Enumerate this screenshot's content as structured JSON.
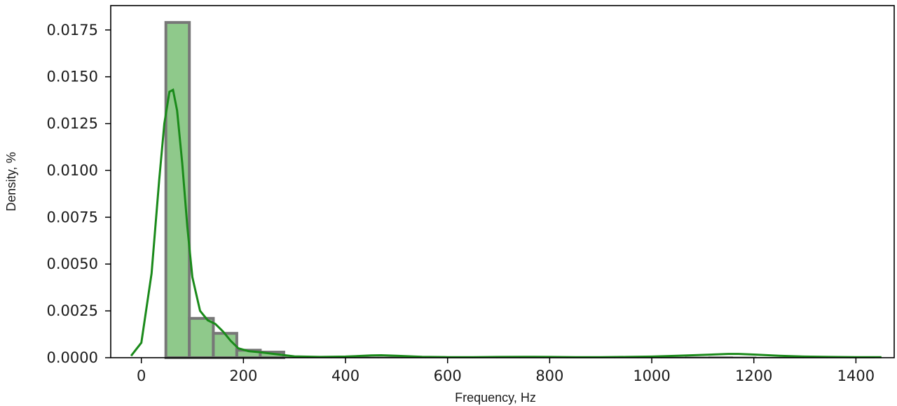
{
  "chart_data": {
    "type": "histogram",
    "title": "",
    "xlabel": "Frequency, Hz",
    "ylabel": "Density, %",
    "xlim": [
      -60,
      1475
    ],
    "ylim": [
      0,
      0.0188
    ],
    "x_ticks": [
      0,
      200,
      400,
      600,
      800,
      1000,
      1200,
      1400
    ],
    "y_ticks": [
      0.0,
      0.0025,
      0.005,
      0.0075,
      0.01,
      0.0125,
      0.015,
      0.0175
    ],
    "y_tick_labels": [
      "0.0000",
      "0.0025",
      "0.0050",
      "0.0075",
      "0.0100",
      "0.0125",
      "0.0150",
      "0.0175"
    ],
    "grid": false,
    "bins": [
      {
        "x0": 48,
        "x1": 94,
        "density": 0.0179
      },
      {
        "x0": 94,
        "x1": 141,
        "density": 0.0021
      },
      {
        "x0": 141,
        "x1": 187,
        "density": 0.0013
      },
      {
        "x0": 187,
        "x1": 233,
        "density": 0.0004
      },
      {
        "x0": 233,
        "x1": 279,
        "density": 0.0003
      },
      {
        "x0": 279,
        "x1": 326,
        "density": 8e-05
      },
      {
        "x0": 326,
        "x1": 372,
        "density": 6e-05
      },
      {
        "x0": 372,
        "x1": 418,
        "density": 4e-05
      },
      {
        "x0": 418,
        "x1": 464,
        "density": 3e-05
      },
      {
        "x0": 464,
        "x1": 511,
        "density": 3e-05
      },
      {
        "x0": 511,
        "x1": 557,
        "density": 2e-05
      },
      {
        "x0": 557,
        "x1": 603,
        "density": 1e-05
      },
      {
        "x0": 603,
        "x1": 649,
        "density": 1e-05
      },
      {
        "x0": 649,
        "x1": 696,
        "density": 1e-05
      },
      {
        "x0": 696,
        "x1": 742,
        "density": 1e-05
      },
      {
        "x0": 742,
        "x1": 788,
        "density": 1e-05
      },
      {
        "x0": 788,
        "x1": 834,
        "density": 1e-05
      },
      {
        "x0": 834,
        "x1": 881,
        "density": 1e-05
      },
      {
        "x0": 881,
        "x1": 927,
        "density": 1e-05
      },
      {
        "x0": 927,
        "x1": 973,
        "density": 1e-05
      },
      {
        "x0": 973,
        "x1": 1019,
        "density": 1e-05
      },
      {
        "x0": 1019,
        "x1": 1066,
        "density": 2e-05
      },
      {
        "x0": 1066,
        "x1": 1112,
        "density": 3e-05
      },
      {
        "x0": 1112,
        "x1": 1158,
        "density": 4e-05
      },
      {
        "x0": 1158,
        "x1": 1204,
        "density": 3e-05
      },
      {
        "x0": 1204,
        "x1": 1251,
        "density": 1e-05
      },
      {
        "x0": 1251,
        "x1": 1297,
        "density": 1e-05
      },
      {
        "x0": 1297,
        "x1": 1343,
        "density": 1e-05
      },
      {
        "x0": 1343,
        "x1": 1389,
        "density": 1e-05
      },
      {
        "x0": 1389,
        "x1": 1436,
        "density": 1e-05
      }
    ],
    "kde": {
      "x": [
        -20,
        0,
        20,
        35,
        45,
        55,
        62,
        70,
        80,
        90,
        100,
        115,
        130,
        145,
        160,
        175,
        190,
        210,
        230,
        260,
        300,
        350,
        400,
        450,
        470,
        500,
        550,
        600,
        650,
        700,
        750,
        800,
        850,
        900,
        950,
        1000,
        1050,
        1100,
        1150,
        1170,
        1200,
        1250,
        1300,
        1350,
        1400,
        1450
      ],
      "y": [
        0.0001,
        0.0008,
        0.0045,
        0.0095,
        0.0125,
        0.0142,
        0.0143,
        0.0132,
        0.0104,
        0.007,
        0.0043,
        0.0025,
        0.002,
        0.0018,
        0.0014,
        0.0009,
        0.0005,
        0.00035,
        0.0003,
        0.0002,
        7e-05,
        4e-05,
        6e-05,
        0.00012,
        0.00013,
        0.0001,
        5e-05,
        3e-05,
        3e-05,
        4e-05,
        5e-05,
        4e-05,
        3e-05,
        3e-05,
        4e-05,
        6e-05,
        0.0001,
        0.00015,
        0.0002,
        0.0002,
        0.00017,
        0.0001,
        6e-05,
        4e-05,
        3e-05,
        3e-05
      ]
    },
    "colors": {
      "bar_fill": "#8fc98b",
      "bar_edge": "#777777",
      "kde_line": "#1a8a1a",
      "axis": "#000000"
    }
  }
}
